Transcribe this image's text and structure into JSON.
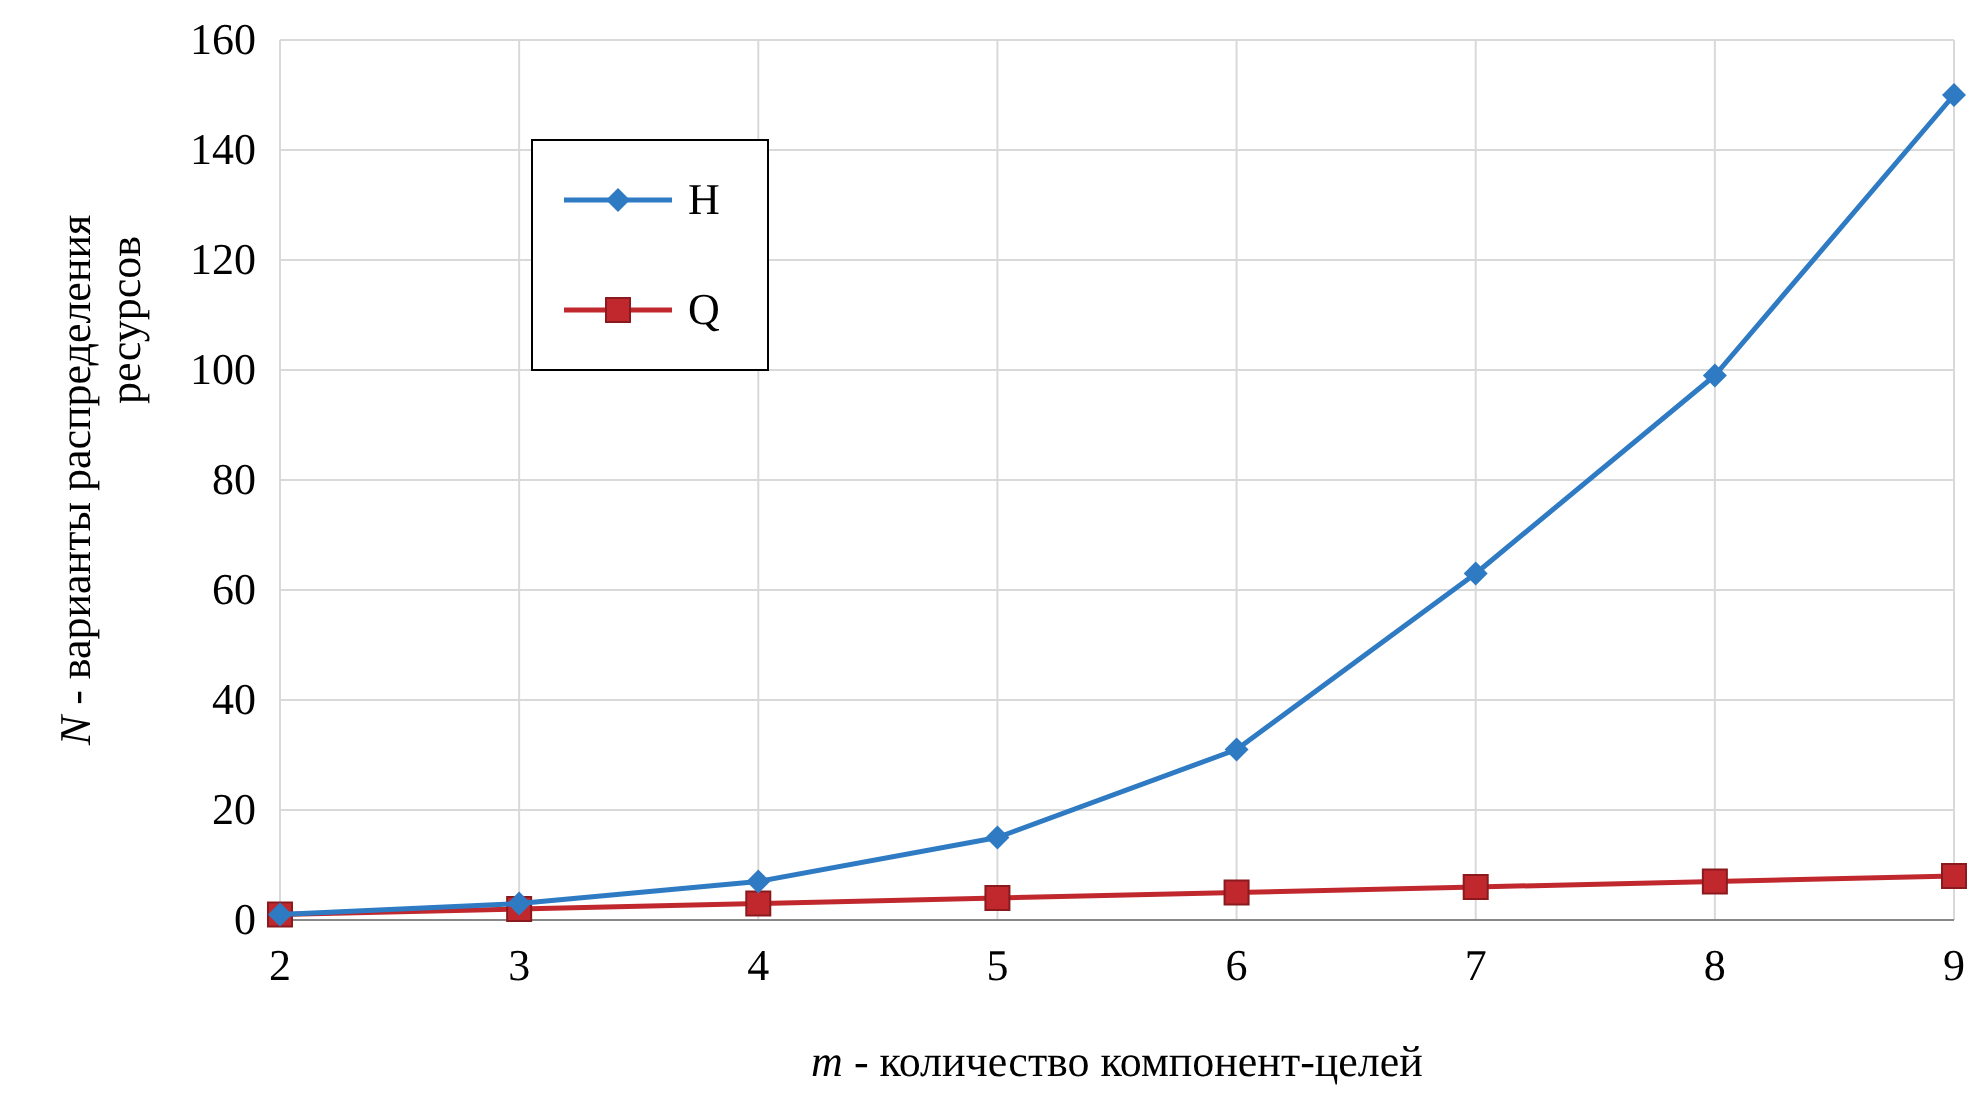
{
  "chart_data": {
    "type": "line",
    "xlabel": "m - количество компонент-целей",
    "ylabel": "N - варианты распределения ресурсов",
    "x": [
      2,
      3,
      4,
      5,
      6,
      7,
      8,
      9
    ],
    "xlim": [
      2,
      9
    ],
    "xticks": [
      2,
      3,
      4,
      5,
      6,
      7,
      8,
      9
    ],
    "ylim": [
      0,
      160
    ],
    "yticks": [
      0,
      20,
      40,
      60,
      80,
      100,
      120,
      140,
      160
    ],
    "grid": true,
    "legend": "top left",
    "series": [
      {
        "name": "H",
        "color": "#2e7bc4",
        "marker": "diamond",
        "values": [
          1,
          3,
          7,
          15,
          31,
          63,
          99,
          150
        ]
      },
      {
        "name": "Q",
        "color": "#c0282d",
        "marker": "square",
        "values": [
          1,
          2,
          3,
          4,
          5,
          6,
          7,
          8
        ]
      }
    ]
  }
}
